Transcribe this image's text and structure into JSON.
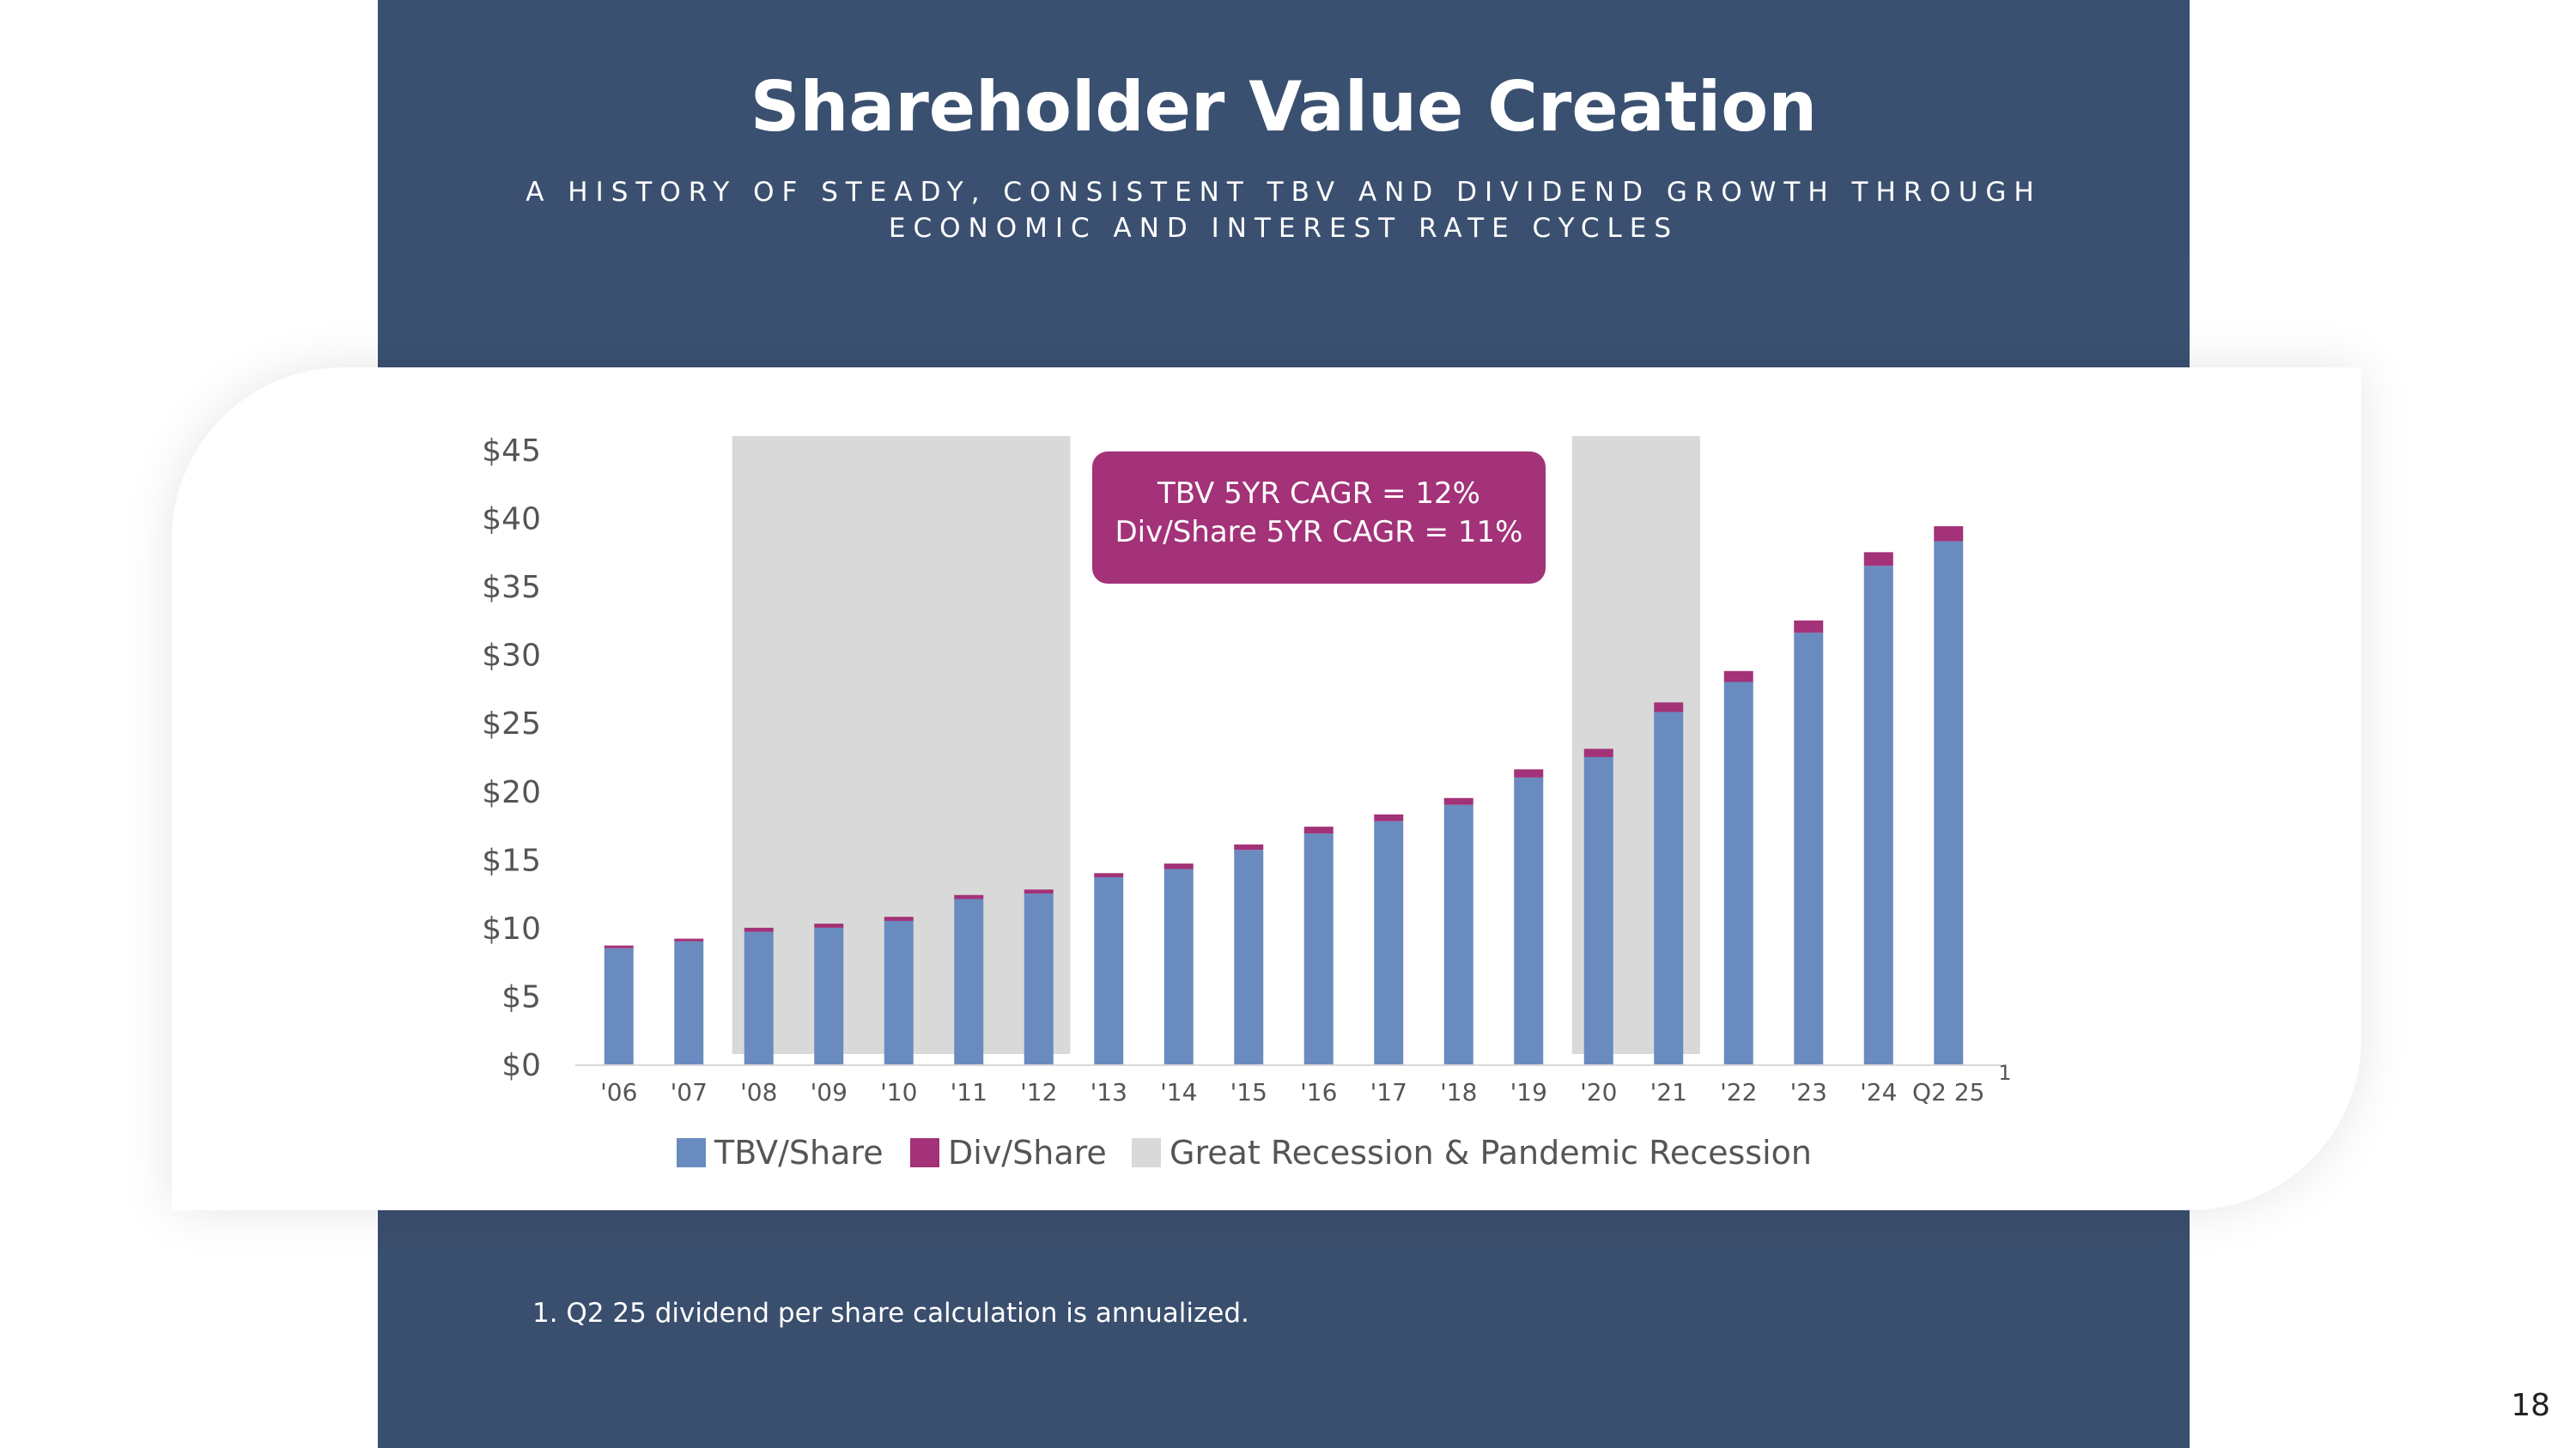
{
  "slide": {
    "title": "Shareholder Value Creation",
    "subtitle_line1": "A HISTORY OF STEADY, CONSISTENT TBV AND DIVIDEND GROWTH THROUGH",
    "subtitle_line2": "ECONOMIC AND INTEREST RATE CYCLES",
    "footnote": "1. Q2 25 dividend per share calculation is annualized.",
    "page_number": "18"
  },
  "chart_data": {
    "type": "bar",
    "stacked": true,
    "categories": [
      "'06",
      "'07",
      "'08",
      "'09",
      "'10",
      "'11",
      "'12",
      "'13",
      "'14",
      "'15",
      "'16",
      "'17",
      "'18",
      "'19",
      "'20",
      "'21",
      "'22",
      "'23",
      "'24",
      "Q2 25"
    ],
    "category_superscripts": {
      "Q2 25": "1"
    },
    "series": [
      {
        "name": "TBV/Share",
        "color": "#6a8bbf",
        "values": [
          8.5,
          9.0,
          9.7,
          10.0,
          10.5,
          12.1,
          12.5,
          13.7,
          14.3,
          15.7,
          16.9,
          17.8,
          19.0,
          21.0,
          22.5,
          25.8,
          28.0,
          31.6,
          36.5,
          38.3
        ]
      },
      {
        "name": "Div/Share",
        "color": "#a33278",
        "values": [
          0.2,
          0.2,
          0.3,
          0.3,
          0.3,
          0.3,
          0.3,
          0.3,
          0.4,
          0.4,
          0.5,
          0.5,
          0.5,
          0.6,
          0.6,
          0.7,
          0.8,
          0.9,
          1.0,
          1.1
        ]
      }
    ],
    "shaded_periods": [
      {
        "name": "Great Recession & Pandemic Recession",
        "from": "'08",
        "to": "'12",
        "color": "#d9d9d9"
      },
      {
        "name": "Great Recession & Pandemic Recession",
        "from": "'20",
        "to": "'21",
        "color": "#d9d9d9"
      }
    ],
    "legend": [
      {
        "label": "TBV/Share",
        "color": "#6a8bbf"
      },
      {
        "label": "Div/Share",
        "color": "#a33278"
      },
      {
        "label": "Great Recession & Pandemic Recession",
        "color": "#d9d9d9"
      }
    ],
    "legend_position": "bottom",
    "yticks": [
      "$0",
      "$5",
      "$10",
      "$15",
      "$20",
      "$25",
      "$30",
      "$35",
      "$40",
      "$45"
    ],
    "ylim": [
      0,
      45
    ],
    "gridlines": false,
    "annotation": {
      "line1": "TBV 5YR CAGR = 12%",
      "line2": "Div/Share 5YR CAGR = 11%",
      "color": "#a33278"
    }
  }
}
